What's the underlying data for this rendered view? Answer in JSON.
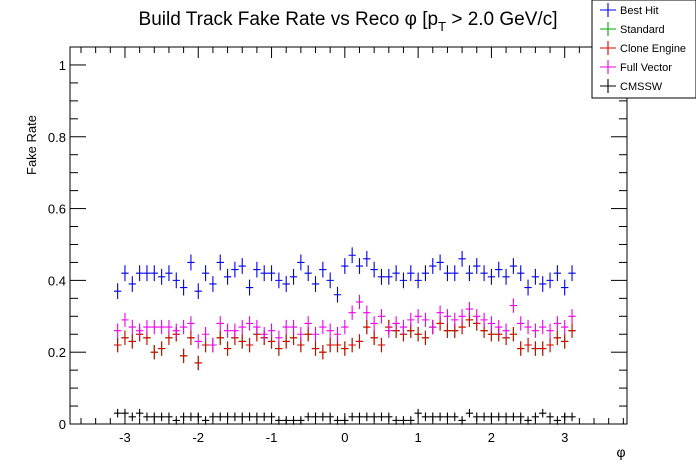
{
  "chart_data": {
    "type": "scatter",
    "title_main": "Build Track Fake Rate vs Reco ",
    "title_phi": "φ",
    "title_open": " [p",
    "title_sub": "T",
    "title_close": " > 2.0 GeV/c]",
    "xlabel": "φ",
    "ylabel": "Fake Rate",
    "xlim": [
      -3.75,
      3.85
    ],
    "ylim": [
      0,
      1.05
    ],
    "x_ticks": [
      -3,
      -2,
      -1,
      0,
      1,
      2,
      3
    ],
    "x_tick_labels": [
      "-3",
      "-2",
      "-1",
      "0",
      "1",
      "2",
      "3"
    ],
    "y_ticks": [
      0,
      0.2,
      0.4,
      0.6,
      0.8,
      1
    ],
    "y_tick_labels": [
      "0",
      "0.2",
      "0.4",
      "0.6",
      "0.8",
      "1"
    ],
    "x_error": 0.05,
    "x": [
      -3.1,
      -3.0,
      -2.9,
      -2.8,
      -2.7,
      -2.6,
      -2.5,
      -2.4,
      -2.3,
      -2.2,
      -2.1,
      -2.0,
      -1.9,
      -1.8,
      -1.7,
      -1.6,
      -1.5,
      -1.4,
      -1.3,
      -1.2,
      -1.1,
      -1.0,
      -0.9,
      -0.8,
      -0.7,
      -0.6,
      -0.5,
      -0.4,
      -0.3,
      -0.2,
      -0.1,
      0.0,
      0.1,
      0.2,
      0.3,
      0.4,
      0.5,
      0.6,
      0.7,
      0.8,
      0.9,
      1.0,
      1.1,
      1.2,
      1.3,
      1.4,
      1.5,
      1.6,
      1.7,
      1.8,
      1.9,
      2.0,
      2.1,
      2.2,
      2.3,
      2.4,
      2.5,
      2.6,
      2.7,
      2.8,
      2.9,
      3.0,
      3.1
    ],
    "series": [
      {
        "name": "Best Hit",
        "color": "#0000ee",
        "err": 0.022,
        "values": [
          0.37,
          0.42,
          0.39,
          0.42,
          0.42,
          0.42,
          0.41,
          0.42,
          0.4,
          0.38,
          0.45,
          0.37,
          0.42,
          0.39,
          0.45,
          0.41,
          0.43,
          0.44,
          0.38,
          0.43,
          0.42,
          0.42,
          0.4,
          0.39,
          0.41,
          0.45,
          0.42,
          0.39,
          0.43,
          0.4,
          0.36,
          0.44,
          0.47,
          0.44,
          0.46,
          0.43,
          0.41,
          0.41,
          0.42,
          0.4,
          0.42,
          0.4,
          0.42,
          0.44,
          0.45,
          0.42,
          0.42,
          0.46,
          0.42,
          0.44,
          0.42,
          0.41,
          0.43,
          0.41,
          0.44,
          0.42,
          0.38,
          0.41,
          0.39,
          0.4,
          0.42,
          0.38,
          0.42
        ]
      },
      {
        "name": "Standard",
        "color": "#00aa00",
        "err": 0.02,
        "values": [
          0.22,
          0.24,
          0.23,
          0.25,
          0.24,
          0.2,
          0.21,
          0.24,
          0.25,
          0.19,
          0.24,
          0.17,
          0.22,
          0.22,
          0.24,
          0.21,
          0.24,
          0.23,
          0.22,
          0.25,
          0.24,
          0.23,
          0.21,
          0.23,
          0.24,
          0.22,
          0.25,
          0.21,
          0.2,
          0.22,
          0.22,
          0.21,
          0.22,
          0.23,
          0.27,
          0.24,
          0.22,
          0.27,
          0.26,
          0.25,
          0.26,
          0.25,
          0.24,
          0.27,
          0.28,
          0.26,
          0.26,
          0.27,
          0.29,
          0.28,
          0.26,
          0.25,
          0.25,
          0.24,
          0.25,
          0.21,
          0.22,
          0.21,
          0.21,
          0.22,
          0.24,
          0.23,
          0.26
        ]
      },
      {
        "name": "Clone Engine",
        "color": "#dd0000",
        "err": 0.02,
        "values": [
          0.22,
          0.24,
          0.23,
          0.25,
          0.24,
          0.2,
          0.21,
          0.24,
          0.25,
          0.19,
          0.24,
          0.17,
          0.22,
          0.22,
          0.24,
          0.21,
          0.24,
          0.23,
          0.22,
          0.25,
          0.24,
          0.23,
          0.21,
          0.23,
          0.24,
          0.22,
          0.25,
          0.21,
          0.2,
          0.22,
          0.22,
          0.21,
          0.22,
          0.23,
          0.27,
          0.24,
          0.22,
          0.27,
          0.26,
          0.25,
          0.26,
          0.25,
          0.24,
          0.27,
          0.28,
          0.26,
          0.26,
          0.27,
          0.29,
          0.28,
          0.26,
          0.25,
          0.25,
          0.24,
          0.25,
          0.21,
          0.22,
          0.21,
          0.21,
          0.22,
          0.24,
          0.23,
          0.26
        ]
      },
      {
        "name": "Full Vector",
        "color": "#ee00ee",
        "err": 0.02,
        "values": [
          0.26,
          0.29,
          0.27,
          0.26,
          0.27,
          0.27,
          0.27,
          0.27,
          0.26,
          0.27,
          0.28,
          0.23,
          0.25,
          0.22,
          0.28,
          0.26,
          0.26,
          0.27,
          0.28,
          0.27,
          0.25,
          0.26,
          0.24,
          0.27,
          0.27,
          0.25,
          0.28,
          0.25,
          0.27,
          0.26,
          0.25,
          0.27,
          0.31,
          0.34,
          0.31,
          0.28,
          0.3,
          0.26,
          0.28,
          0.27,
          0.29,
          0.3,
          0.29,
          0.27,
          0.31,
          0.3,
          0.29,
          0.3,
          0.32,
          0.3,
          0.29,
          0.28,
          0.27,
          0.26,
          0.33,
          0.28,
          0.27,
          0.26,
          0.27,
          0.26,
          0.28,
          0.27,
          0.3
        ]
      },
      {
        "name": "CMSSW",
        "color": "#000000",
        "err": 0.012,
        "values": [
          0.03,
          0.03,
          0.02,
          0.03,
          0.02,
          0.02,
          0.02,
          0.02,
          0.01,
          0.02,
          0.02,
          0.02,
          0.01,
          0.02,
          0.02,
          0.02,
          0.02,
          0.02,
          0.02,
          0.02,
          0.02,
          0.02,
          0.01,
          0.01,
          0.01,
          0.01,
          0.02,
          0.02,
          0.02,
          0.02,
          0.01,
          0.01,
          0.02,
          0.02,
          0.02,
          0.02,
          0.02,
          0.02,
          0.01,
          0.01,
          0.01,
          0.03,
          0.02,
          0.02,
          0.02,
          0.02,
          0.02,
          0.01,
          0.03,
          0.02,
          0.02,
          0.02,
          0.02,
          0.02,
          0.02,
          0.02,
          0.01,
          0.02,
          0.03,
          0.02,
          0.01,
          0.02,
          0.02
        ]
      }
    ],
    "legend_position": "top-right"
  }
}
